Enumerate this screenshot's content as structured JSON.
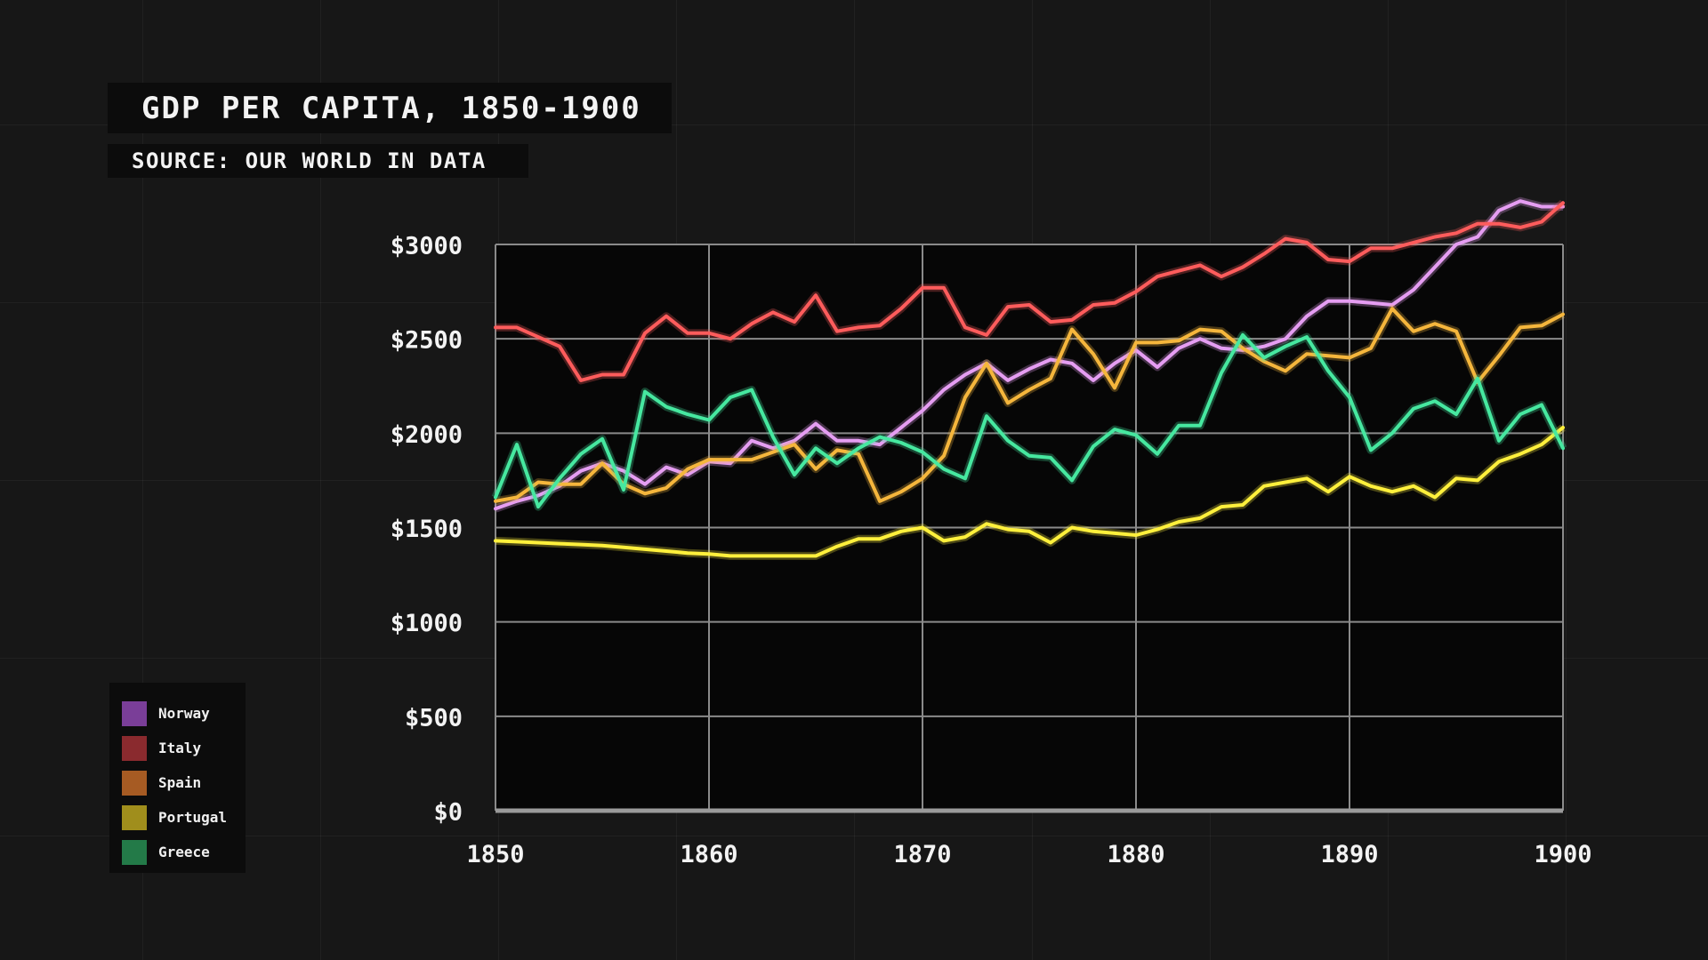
{
  "chart_data": {
    "type": "line",
    "title": "GDP PER CAPITA, 1850-1900",
    "subtitle": "SOURCE: OUR WORLD IN DATA",
    "xlabel": "",
    "ylabel": "",
    "xlim": [
      1850,
      1900
    ],
    "ylim": [
      0,
      3000
    ],
    "x_ticks": [
      1850,
      1860,
      1870,
      1880,
      1890,
      1900
    ],
    "x_tick_labels": [
      "1850",
      "1860",
      "1870",
      "1880",
      "1890",
      "1900"
    ],
    "y_ticks": [
      0,
      500,
      1000,
      1500,
      2000,
      2500,
      3000
    ],
    "y_tick_labels": [
      "$0",
      "$500",
      "$1000",
      "$1500",
      "$2000",
      "$2500",
      "$3000"
    ],
    "grid": true,
    "legend_position": "bottom-left",
    "x": [
      1850,
      1851,
      1852,
      1853,
      1854,
      1855,
      1856,
      1857,
      1858,
      1859,
      1860,
      1861,
      1862,
      1863,
      1864,
      1865,
      1866,
      1867,
      1868,
      1869,
      1870,
      1871,
      1872,
      1873,
      1874,
      1875,
      1876,
      1877,
      1878,
      1879,
      1880,
      1881,
      1882,
      1883,
      1884,
      1885,
      1886,
      1887,
      1888,
      1889,
      1890,
      1891,
      1892,
      1893,
      1894,
      1895,
      1896,
      1897,
      1898,
      1899,
      1900
    ],
    "series": [
      {
        "name": "Norway",
        "color": "#e59df2",
        "legend_color": "#7a3e98",
        "values": [
          1600,
          1640,
          1670,
          1720,
          1800,
          1840,
          1800,
          1730,
          1820,
          1780,
          1850,
          1840,
          1960,
          1920,
          1960,
          2050,
          1960,
          1960,
          1940,
          2030,
          2120,
          2230,
          2310,
          2370,
          2280,
          2340,
          2390,
          2370,
          2280,
          2370,
          2440,
          2350,
          2450,
          2500,
          2450,
          2440,
          2460,
          2500,
          2620,
          2700,
          2700,
          2690,
          2680,
          2760,
          2880,
          3000,
          3040,
          3180,
          3230,
          3200,
          3200
        ]
      },
      {
        "name": "Italy",
        "color": "#ff5c5c",
        "legend_color": "#8a2a2e",
        "values": [
          2560,
          2560,
          2510,
          2460,
          2280,
          2310,
          2310,
          2530,
          2620,
          2530,
          2530,
          2500,
          2580,
          2640,
          2590,
          2730,
          2540,
          2560,
          2570,
          2660,
          2770,
          2770,
          2560,
          2520,
          2670,
          2680,
          2590,
          2600,
          2680,
          2690,
          2750,
          2830,
          2860,
          2890,
          2830,
          2880,
          2950,
          3030,
          3010,
          2920,
          2910,
          2980,
          2980,
          3010,
          3040,
          3060,
          3110,
          3110,
          3090,
          3120,
          3220
        ]
      },
      {
        "name": "Spain",
        "color": "#f5b63c",
        "legend_color": "#a65b23",
        "values": [
          1640,
          1660,
          1740,
          1730,
          1730,
          1840,
          1730,
          1680,
          1710,
          1810,
          1860,
          1860,
          1860,
          1900,
          1940,
          1810,
          1910,
          1890,
          1640,
          1690,
          1760,
          1880,
          2190,
          2370,
          2160,
          2230,
          2290,
          2550,
          2420,
          2240,
          2480,
          2480,
          2490,
          2550,
          2540,
          2450,
          2380,
          2330,
          2420,
          2410,
          2400,
          2450,
          2660,
          2540,
          2580,
          2540,
          2270,
          2410,
          2560,
          2570,
          2630
        ]
      },
      {
        "name": "Portugal",
        "color": "#fff03c",
        "legend_color": "#a08e1c",
        "values": [
          1430,
          1425,
          1420,
          1415,
          1410,
          1405,
          1395,
          1385,
          1375,
          1365,
          1360,
          1350,
          1350,
          1350,
          1350,
          1350,
          1400,
          1440,
          1440,
          1480,
          1500,
          1430,
          1450,
          1520,
          1490,
          1480,
          1420,
          1500,
          1480,
          1470,
          1460,
          1490,
          1530,
          1550,
          1610,
          1620,
          1720,
          1740,
          1760,
          1690,
          1770,
          1720,
          1690,
          1720,
          1660,
          1760,
          1750,
          1850,
          1890,
          1940,
          2030
        ]
      },
      {
        "name": "Greece",
        "color": "#46e8a0",
        "legend_color": "#237a48",
        "values": [
          1660,
          1940,
          1610,
          1760,
          1890,
          1970,
          1700,
          2220,
          2140,
          2100,
          2070,
          2190,
          2230,
          1980,
          1780,
          1920,
          1840,
          1920,
          1980,
          1950,
          1900,
          1810,
          1760,
          2090,
          1960,
          1880,
          1870,
          1750,
          1930,
          2020,
          1990,
          1890,
          2040,
          2040,
          2320,
          2520,
          2400,
          2460,
          2510,
          2330,
          2190,
          1910,
          2000,
          2130,
          2170,
          2100,
          2290,
          1960,
          2100,
          2150,
          1920
        ]
      }
    ]
  }
}
